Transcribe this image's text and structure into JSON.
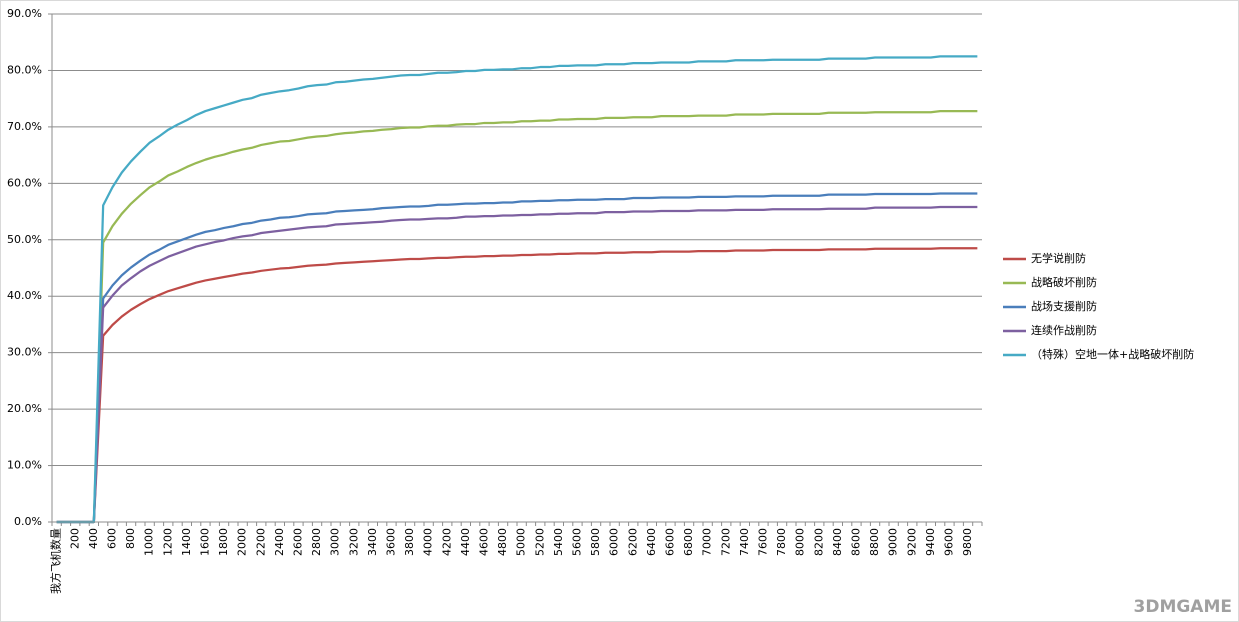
{
  "chart_data": {
    "type": "line",
    "categories": [
      "我方飞机数量",
      null,
      "200",
      null,
      "400",
      null,
      "600",
      null,
      "800",
      null,
      "1000",
      null,
      "1200",
      null,
      "1400",
      null,
      "1600",
      null,
      "1800",
      null,
      "2000",
      null,
      "2200",
      null,
      "2400",
      null,
      "2600",
      null,
      "2800",
      null,
      "3000",
      null,
      "3200",
      null,
      "3400",
      null,
      "3600",
      null,
      "3800",
      null,
      "4000",
      null,
      "4200",
      null,
      "4400",
      null,
      "4600",
      null,
      "4800",
      null,
      "5000",
      null,
      "5200",
      null,
      "5400",
      null,
      "5600",
      null,
      "5800",
      null,
      "6000",
      null,
      "6200",
      null,
      "6400",
      null,
      "6600",
      null,
      "6800",
      null,
      "7000",
      null,
      "7200",
      null,
      "7400",
      null,
      "7600",
      null,
      "7800",
      null,
      "8000",
      null,
      "8200",
      null,
      "8400",
      null,
      "8600",
      null,
      "8800",
      null,
      "9000",
      null,
      "9200",
      null,
      "9400",
      null,
      "9600",
      null,
      "9800",
      null
    ],
    "series": [
      {
        "name": "无学说削防",
        "color": "#be4b48",
        "values": [
          0,
          0,
          0,
          0,
          0,
          33.0,
          34.9,
          36.4,
          37.6,
          38.6,
          39.5,
          40.2,
          40.9,
          41.4,
          41.9,
          42.4,
          42.8,
          43.1,
          43.4,
          43.7,
          44.0,
          44.2,
          44.5,
          44.7,
          44.9,
          45.0,
          45.2,
          45.4,
          45.5,
          45.6,
          45.8,
          45.9,
          46.0,
          46.1,
          46.2,
          46.3,
          46.4,
          46.5,
          46.6,
          46.6,
          46.7,
          46.8,
          46.8,
          46.9,
          47.0,
          47.0,
          47.1,
          47.1,
          47.2,
          47.2,
          47.3,
          47.3,
          47.4,
          47.4,
          47.5,
          47.5,
          47.6,
          47.6,
          47.6,
          47.7,
          47.7,
          47.7,
          47.8,
          47.8,
          47.8,
          47.9,
          47.9,
          47.9,
          47.9,
          48.0,
          48.0,
          48.0,
          48.0,
          48.1,
          48.1,
          48.1,
          48.1,
          48.2,
          48.2,
          48.2,
          48.2,
          48.2,
          48.2,
          48.3,
          48.3,
          48.3,
          48.3,
          48.3,
          48.4,
          48.4,
          48.4,
          48.4,
          48.4,
          48.4,
          48.4,
          48.5,
          48.5,
          48.5,
          48.5,
          48.5
        ]
      },
      {
        "name": "战略破坏削防",
        "color": "#98b954",
        "values": [
          0,
          0,
          0,
          0,
          0,
          49.5,
          52.4,
          54.6,
          56.4,
          57.9,
          59.3,
          60.3,
          61.4,
          62.1,
          62.9,
          63.6,
          64.2,
          64.7,
          65.1,
          65.6,
          66.0,
          66.3,
          66.8,
          67.1,
          67.4,
          67.5,
          67.8,
          68.1,
          68.3,
          68.4,
          68.7,
          68.9,
          69.0,
          69.2,
          69.3,
          69.5,
          69.6,
          69.8,
          69.9,
          69.9,
          70.1,
          70.2,
          70.2,
          70.4,
          70.5,
          70.5,
          70.7,
          70.7,
          70.8,
          70.8,
          71.0,
          71.0,
          71.1,
          71.1,
          71.3,
          71.3,
          71.4,
          71.4,
          71.4,
          71.6,
          71.6,
          71.6,
          71.7,
          71.7,
          71.7,
          71.9,
          71.9,
          71.9,
          71.9,
          72.0,
          72.0,
          72.0,
          72.0,
          72.2,
          72.2,
          72.2,
          72.2,
          72.3,
          72.3,
          72.3,
          72.3,
          72.3,
          72.3,
          72.5,
          72.5,
          72.5,
          72.5,
          72.5,
          72.6,
          72.6,
          72.6,
          72.6,
          72.6,
          72.6,
          72.6,
          72.8,
          72.8,
          72.8,
          72.8,
          72.8
        ]
      },
      {
        "name": "战场支援削防",
        "color": "#4a7ebb",
        "values": [
          0,
          0,
          0,
          0,
          0,
          39.6,
          41.9,
          43.7,
          45.1,
          46.3,
          47.4,
          48.2,
          49.1,
          49.7,
          50.3,
          50.9,
          51.4,
          51.7,
          52.1,
          52.4,
          52.8,
          53.0,
          53.4,
          53.6,
          53.9,
          54.0,
          54.2,
          54.5,
          54.6,
          54.7,
          55.0,
          55.1,
          55.2,
          55.3,
          55.4,
          55.6,
          55.7,
          55.8,
          55.9,
          55.9,
          56.0,
          56.2,
          56.2,
          56.3,
          56.4,
          56.4,
          56.5,
          56.5,
          56.6,
          56.6,
          56.8,
          56.8,
          56.9,
          56.9,
          57.0,
          57.0,
          57.1,
          57.1,
          57.1,
          57.2,
          57.2,
          57.2,
          57.4,
          57.4,
          57.4,
          57.5,
          57.5,
          57.5,
          57.5,
          57.6,
          57.6,
          57.6,
          57.6,
          57.7,
          57.7,
          57.7,
          57.7,
          57.8,
          57.8,
          57.8,
          57.8,
          57.8,
          57.8,
          58.0,
          58.0,
          58.0,
          58.0,
          58.0,
          58.1,
          58.1,
          58.1,
          58.1,
          58.1,
          58.1,
          58.1,
          58.2,
          58.2,
          58.2,
          58.2,
          58.2
        ]
      },
      {
        "name": "连续作战削防",
        "color": "#7d60a0",
        "values": [
          0,
          0,
          0,
          0,
          0,
          38.0,
          40.1,
          41.9,
          43.2,
          44.4,
          45.4,
          46.2,
          47.0,
          47.6,
          48.2,
          48.8,
          49.2,
          49.6,
          49.9,
          50.3,
          50.6,
          50.8,
          51.2,
          51.4,
          51.6,
          51.8,
          52.0,
          52.2,
          52.3,
          52.4,
          52.7,
          52.8,
          52.9,
          53.0,
          53.1,
          53.2,
          53.4,
          53.5,
          53.6,
          53.6,
          53.7,
          53.8,
          53.8,
          53.9,
          54.1,
          54.1,
          54.2,
          54.2,
          54.3,
          54.3,
          54.4,
          54.4,
          54.5,
          54.5,
          54.6,
          54.6,
          54.7,
          54.7,
          54.7,
          54.9,
          54.9,
          54.9,
          55.0,
          55.0,
          55.0,
          55.1,
          55.1,
          55.1,
          55.1,
          55.2,
          55.2,
          55.2,
          55.2,
          55.3,
          55.3,
          55.3,
          55.3,
          55.4,
          55.4,
          55.4,
          55.4,
          55.4,
          55.4,
          55.5,
          55.5,
          55.5,
          55.5,
          55.5,
          55.7,
          55.7,
          55.7,
          55.7,
          55.7,
          55.7,
          55.7,
          55.8,
          55.8,
          55.8,
          55.8,
          55.8
        ]
      },
      {
        "name": "（特殊）空地一体+战略破坏削防",
        "color": "#46aac5",
        "values": [
          0,
          0,
          0,
          0,
          0,
          56.1,
          59.3,
          61.9,
          63.9,
          65.6,
          67.2,
          68.3,
          69.5,
          70.4,
          71.2,
          72.1,
          72.8,
          73.3,
          73.8,
          74.3,
          74.8,
          75.1,
          75.7,
          76.0,
          76.3,
          76.5,
          76.8,
          77.2,
          77.4,
          77.5,
          77.9,
          78.0,
          78.2,
          78.4,
          78.5,
          78.7,
          78.9,
          79.1,
          79.2,
          79.2,
          79.4,
          79.6,
          79.6,
          79.7,
          79.9,
          79.9,
          80.1,
          80.1,
          80.2,
          80.2,
          80.4,
          80.4,
          80.6,
          80.6,
          80.8,
          80.8,
          80.9,
          80.9,
          80.9,
          81.1,
          81.1,
          81.1,
          81.3,
          81.3,
          81.3,
          81.4,
          81.4,
          81.4,
          81.4,
          81.6,
          81.6,
          81.6,
          81.6,
          81.8,
          81.8,
          81.8,
          81.8,
          81.9,
          81.9,
          81.9,
          81.9,
          81.9,
          81.9,
          82.1,
          82.1,
          82.1,
          82.1,
          82.1,
          82.3,
          82.3,
          82.3,
          82.3,
          82.3,
          82.3,
          82.3,
          82.5,
          82.5,
          82.5,
          82.5,
          82.5
        ]
      }
    ],
    "ylim": [
      0,
      90
    ],
    "yticks": [
      {
        "value": 0,
        "label": "0.0%"
      },
      {
        "value": 10,
        "label": "10.0%"
      },
      {
        "value": 20,
        "label": "20.0%"
      },
      {
        "value": 30,
        "label": "30.0%"
      },
      {
        "value": 40,
        "label": "40.0%"
      },
      {
        "value": 50,
        "label": "50.0%"
      },
      {
        "value": 60,
        "label": "60.0%"
      },
      {
        "value": 70,
        "label": "70.0%"
      },
      {
        "value": 80,
        "label": "80.0%"
      },
      {
        "value": 90,
        "label": "90.0%"
      }
    ],
    "grid": true,
    "legend": "right",
    "watermark": "3DMGAME"
  }
}
